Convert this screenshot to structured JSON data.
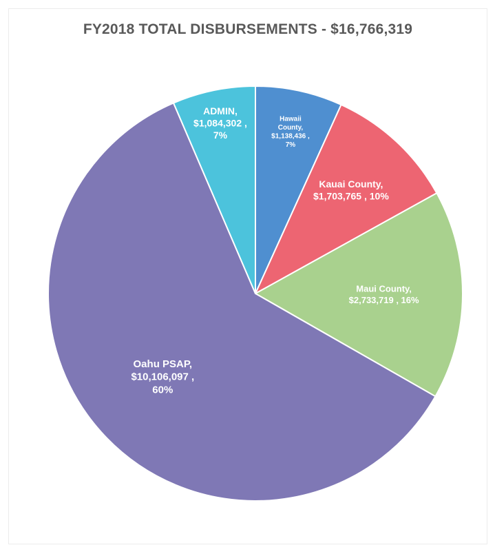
{
  "chart_data": {
    "type": "pie",
    "title": "FY2018 TOTAL DISBURSEMENTS - $16,766,319",
    "slices": [
      {
        "name": "Hawaii County",
        "value": 1138436,
        "value_label": "$1,138,436",
        "percent_label": "7%",
        "color": "#4f8fd0",
        "label_lines": [
          "Hawaii",
          "County,",
          "$1,138,436 ,",
          "7%"
        ],
        "font_size": 10
      },
      {
        "name": "Kauai County",
        "value": 1703765,
        "value_label": "$1,703,765",
        "percent_label": "10%",
        "color": "#ed6572",
        "label_lines": [
          "Kauai County,",
          "$1,703,765 , 10%"
        ],
        "font_size": 14
      },
      {
        "name": "Maui County",
        "value": 2733719,
        "value_label": "$2,733,719",
        "percent_label": "16%",
        "color": "#a9d18e",
        "label_lines": [
          "Maui County,",
          "$2,733,719 , 16%"
        ],
        "font_size": 13
      },
      {
        "name": "Oahu PSAP",
        "value": 10106097,
        "value_label": "$10,106,097",
        "percent_label": "60%",
        "color": "#7f78b5",
        "label_lines": [
          "Oahu PSAP,",
          "$10,106,097 ,",
          "60%"
        ],
        "font_size": 15
      },
      {
        "name": "ADMIN",
        "value": 1084302,
        "value_label": "$1,084,302",
        "percent_label": "7%",
        "color": "#4cc3dc",
        "label_lines": [
          "ADMIN,",
          "$1,084,302 ,",
          "7%"
        ],
        "font_size": 14
      }
    ],
    "start_angle": "12 o'clock",
    "direction": "clockwise",
    "legend": "none"
  }
}
